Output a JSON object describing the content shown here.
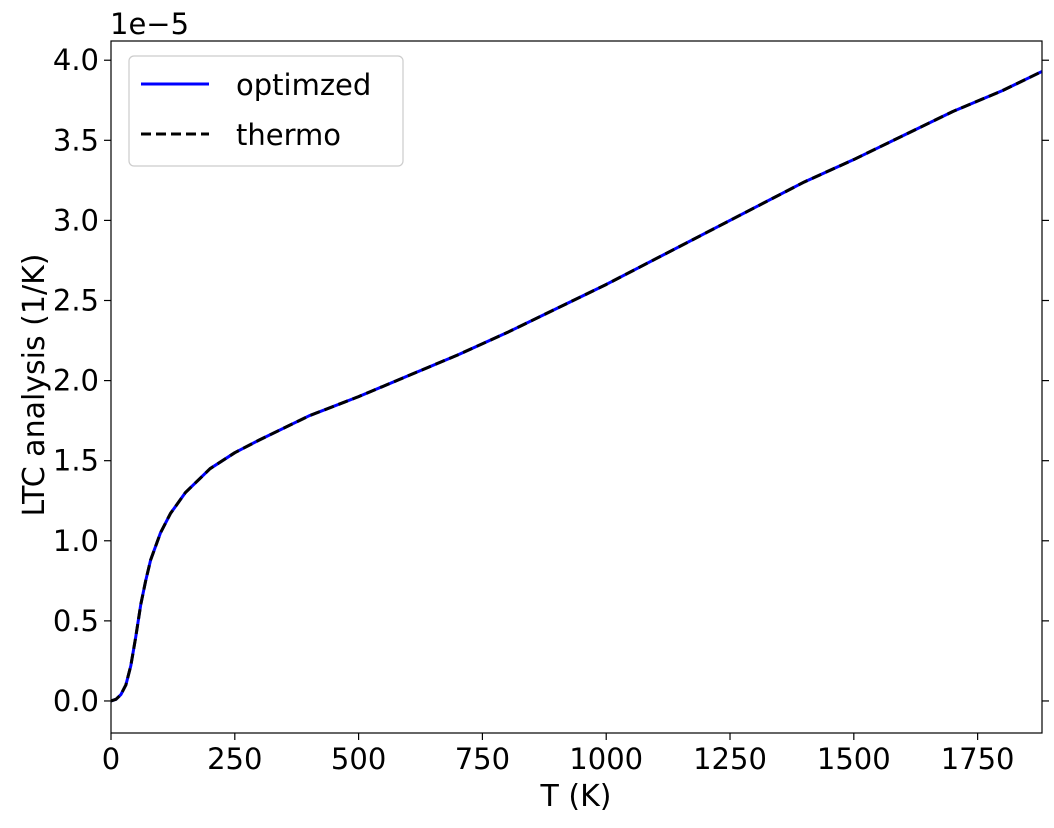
{
  "chart_data": {
    "type": "line",
    "title": "",
    "xlabel": "T (K)",
    "ylabel": "LTC analysis (1/K)",
    "y_offset_label": "1e−5",
    "xlim": [
      0,
      1880
    ],
    "ylim": [
      -0.2,
      4.12
    ],
    "y_scale_factor": 1e-05,
    "x_ticks": [
      0,
      250,
      500,
      750,
      1000,
      1250,
      1500,
      1750
    ],
    "y_ticks": [
      0.0,
      0.5,
      1.0,
      1.5,
      2.0,
      2.5,
      3.0,
      3.5,
      4.0
    ],
    "x_tick_labels": [
      "0",
      "250",
      "500",
      "750",
      "1000",
      "1250",
      "1500",
      "1750"
    ],
    "y_tick_labels": [
      "0.0",
      "0.5",
      "1.0",
      "1.5",
      "2.0",
      "2.5",
      "3.0",
      "3.5",
      "4.0"
    ],
    "grid": false,
    "legend_position": "top-left",
    "series": [
      {
        "name": "optimzed",
        "color": "#0000ff",
        "style": "solid",
        "x": [
          0,
          10,
          20,
          30,
          40,
          50,
          60,
          70,
          80,
          100,
          120,
          150,
          200,
          250,
          300,
          400,
          500,
          600,
          700,
          800,
          900,
          1000,
          1100,
          1200,
          1300,
          1400,
          1500,
          1600,
          1700,
          1800,
          1880
        ],
        "y": [
          0.0,
          0.01,
          0.04,
          0.1,
          0.22,
          0.4,
          0.6,
          0.75,
          0.88,
          1.05,
          1.17,
          1.3,
          1.45,
          1.55,
          1.63,
          1.78,
          1.9,
          2.03,
          2.16,
          2.3,
          2.45,
          2.6,
          2.76,
          2.92,
          3.08,
          3.24,
          3.38,
          3.53,
          3.68,
          3.81,
          3.93
        ]
      },
      {
        "name": "thermo",
        "color": "#000000",
        "style": "dashed",
        "x": [
          0,
          10,
          20,
          30,
          40,
          50,
          60,
          70,
          80,
          100,
          120,
          150,
          200,
          250,
          300,
          400,
          500,
          600,
          700,
          800,
          900,
          1000,
          1100,
          1200,
          1300,
          1400,
          1500,
          1600,
          1700,
          1800,
          1880
        ],
        "y": [
          0.0,
          0.01,
          0.04,
          0.1,
          0.22,
          0.4,
          0.6,
          0.75,
          0.88,
          1.05,
          1.17,
          1.3,
          1.45,
          1.55,
          1.63,
          1.78,
          1.9,
          2.03,
          2.16,
          2.3,
          2.45,
          2.6,
          2.76,
          2.92,
          3.08,
          3.24,
          3.38,
          3.53,
          3.68,
          3.81,
          3.93
        ]
      }
    ]
  }
}
